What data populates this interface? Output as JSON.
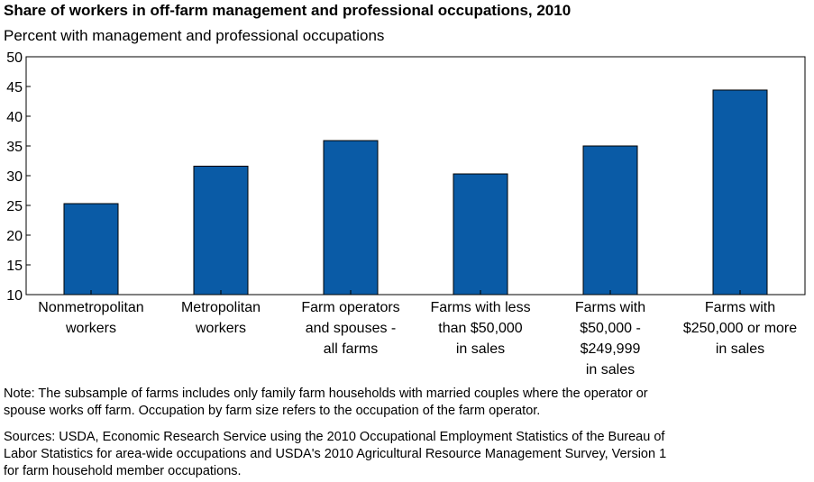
{
  "chart_data": {
    "type": "bar",
    "title": "Share of workers in off-farm management and professional occupations, 2010",
    "subtitle": "Percent with management and professional occupations",
    "categories": [
      [
        "Nonmetropolitan",
        "workers"
      ],
      [
        "Metropolitan",
        "workers"
      ],
      [
        "Farm operators",
        "and spouses -",
        "all farms"
      ],
      [
        "Farms with less",
        "than $50,000",
        "in sales"
      ],
      [
        "Farms with",
        "$50,000 -",
        "$249,999",
        "in sales"
      ],
      [
        "Farms with",
        "$250,000 or more",
        "in sales"
      ]
    ],
    "values": [
      25.3,
      31.6,
      35.9,
      30.3,
      35.0,
      44.4
    ],
    "ylim": [
      10,
      50
    ],
    "yticks": [
      10,
      15,
      20,
      25,
      30,
      35,
      40,
      45,
      50
    ],
    "xlabel": "",
    "ylabel": "",
    "grid": false,
    "bar_color": "#0a5ba6",
    "bar_edge_color": "#000000"
  },
  "notes": {
    "note_lines": [
      "Note: The subsample of farms includes only family farm households with married couples where the operator or",
      "spouse works off farm. Occupation by farm size refers to the occupation of the farm operator."
    ],
    "sources_lines": [
      "Sources: USDA, Economic Research Service using the 2010 Occupational Employment Statistics of the Bureau of",
      "Labor Statistics for area-wide occupations and USDA's 2010 Agricultural Resource Management Survey, Version 1",
      "for farm household member occupations."
    ]
  }
}
